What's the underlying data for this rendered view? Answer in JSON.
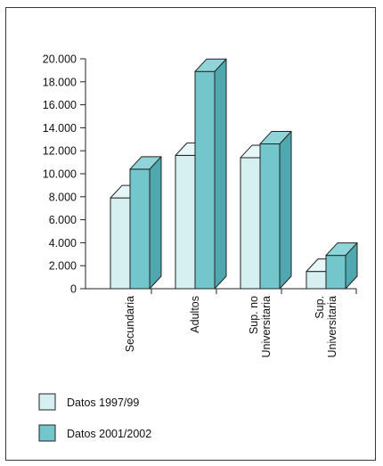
{
  "chart_data": {
    "type": "bar",
    "categories": [
      "Secundaria",
      "Adultos",
      "Sup. no Universitaria",
      "Sup. Universitaria"
    ],
    "category_lines": [
      [
        "Secundaria"
      ],
      [
        "Adultos"
      ],
      [
        "Sup. no",
        "Universitaria"
      ],
      [
        "Sup.",
        "Universitaria"
      ]
    ],
    "series": [
      {
        "name": "Datos 1997/99",
        "values": [
          7900,
          11600,
          11400,
          1500
        ],
        "color": "#d6eff1"
      },
      {
        "name": "Datos 2001/2002",
        "values": [
          10400,
          18900,
          12600,
          2900
        ],
        "color": "#73c7cc"
      }
    ],
    "ylim": [
      0,
      20000
    ],
    "yticks": [
      0,
      2000,
      4000,
      6000,
      8000,
      10000,
      12000,
      14000,
      16000,
      18000,
      20000
    ],
    "ytick_labels": [
      "0",
      "2.000",
      "4.000",
      "6.000",
      "8.000",
      "10.000",
      "12.000",
      "14.000",
      "16.000",
      "18.000",
      "20.000"
    ],
    "style": "3d-bar",
    "grid": false,
    "legend_position": "bottom-left",
    "title": "",
    "xlabel": "",
    "ylabel": ""
  }
}
